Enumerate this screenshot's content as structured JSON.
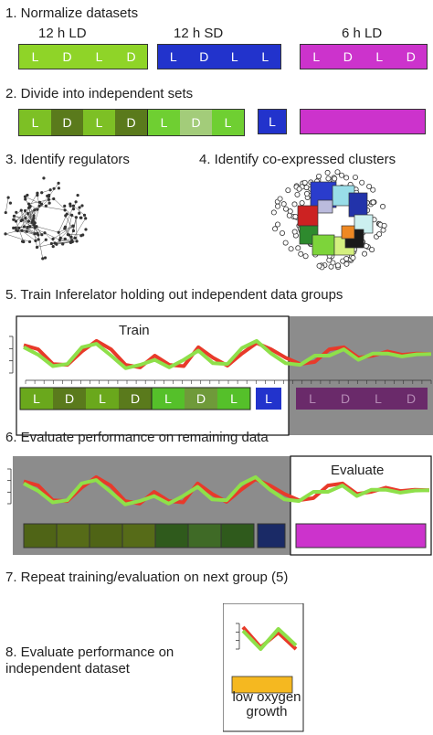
{
  "steps": {
    "s1": "1. Normalize datasets",
    "s2": "2. Divide into independent sets",
    "s3": "3. Identify regulators",
    "s4": "4. Identify co-expressed clusters",
    "s5": "5. Train Inferelator holding out independent data groups",
    "s6": "6. Evaluate performance on remaining data",
    "s7": "7. Repeat training/evaluation on next group (5)",
    "s8_line1": "8. Evaluate performance on",
    "s8_line2": "independent dataset"
  },
  "datasets": [
    {
      "label": "12 h LD",
      "color": "#8fd428",
      "cells": [
        "L",
        "D",
        "L",
        "D"
      ]
    },
    {
      "label": "12 h SD",
      "color": "#2233cc",
      "cells": [
        "L",
        "D",
        "L",
        "L"
      ]
    },
    {
      "label": "6 h LD",
      "color": "#cc33cc",
      "cells": [
        "L",
        "D",
        "L",
        "D"
      ]
    }
  ],
  "sets": {
    "green_cells": [
      {
        "text": "L",
        "color": "#7dc025"
      },
      {
        "text": "D",
        "color": "#5a7a1c"
      },
      {
        "text": "L",
        "color": "#7dc025"
      },
      {
        "text": "D",
        "color": "#5a7a1c"
      },
      {
        "text": "L",
        "color": "#6fcf32"
      },
      {
        "text": "D",
        "color": "#a3cc7a"
      },
      {
        "text": "L",
        "color": "#6fcf32"
      }
    ],
    "blue_cell": {
      "text": "L",
      "color": "#2233cc"
    },
    "magenta_color": "#cc33cc"
  },
  "train_panel": {
    "label": "Train",
    "cells": [
      {
        "text": "L",
        "color": "#6aa81c"
      },
      {
        "text": "D",
        "color": "#5a7a1c"
      },
      {
        "text": "L",
        "color": "#6aa81c"
      },
      {
        "text": "D",
        "color": "#5a7a1c"
      },
      {
        "text": "L",
        "color": "#55c02a"
      },
      {
        "text": "D",
        "color": "#6f9a3a"
      },
      {
        "text": "L",
        "color": "#55c02a"
      }
    ],
    "blue_cell": {
      "text": "L",
      "color": "#2233cc"
    },
    "grey_cells": [
      "L",
      "D",
      "L",
      "D"
    ],
    "grey_color": "#6a2a6a"
  },
  "evaluate_panel": {
    "label": "Evaluate",
    "dark_cells": [
      "#4f6416",
      "#566b18",
      "#4f6416",
      "#566b18",
      "#2f5a1c",
      "#3f6a26",
      "#2f5a1c"
    ],
    "blue_color": "#1a2a66",
    "magenta_color": "#cc33cc"
  },
  "final_panel": {
    "bar_color": "#f5b820",
    "label_line1": "low oxygen",
    "label_line2": "growth"
  },
  "colors": {
    "measured": "#e83a2a",
    "predicted": "#8ee04a",
    "panel_grey": "#8c8c8c"
  }
}
